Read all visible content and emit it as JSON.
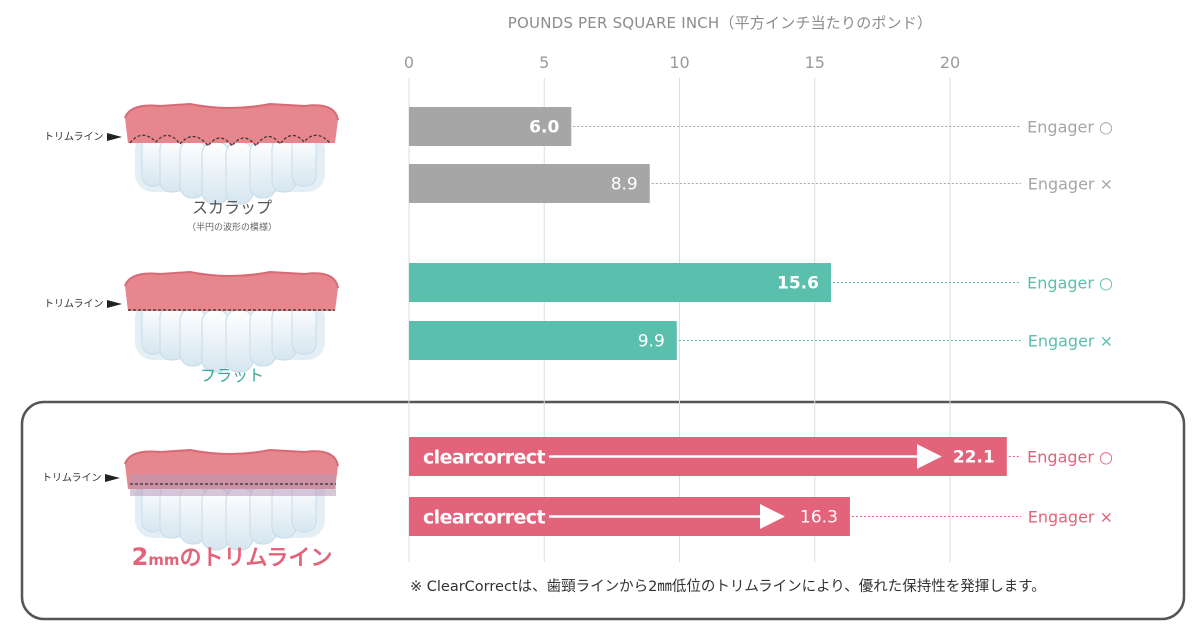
{
  "chart_data": {
    "type": "bar",
    "orientation": "horizontal",
    "title": "POUNDS PER SQUARE INCH（平方インチ当たりのポンド）",
    "xlim": [
      0,
      22.5
    ],
    "ticks": [
      "0",
      "5",
      "10",
      "15",
      "20"
    ],
    "grid": true,
    "trim_label": "トリムライン",
    "groups": [
      {
        "name": "スカラップ",
        "subtitle": "（半円の波形の模様）",
        "color": "#a6a6a6",
        "bars": [
          {
            "value": 6.0,
            "label": "6.0",
            "engager": "Engager ○",
            "bold": true
          },
          {
            "value": 8.9,
            "label": "8.9",
            "engager": "Engager ×",
            "bold": false
          }
        ]
      },
      {
        "name": "フラット",
        "subtitle": "",
        "color": "#5bbfad",
        "bars": [
          {
            "value": 15.6,
            "label": "15.6",
            "engager": "Engager ○",
            "bold": true
          },
          {
            "value": 9.9,
            "label": "9.9",
            "engager": "Engager ×",
            "bold": false
          }
        ]
      },
      {
        "name_num": "2",
        "name_unit": "mm",
        "name_rest": "のトリムライン",
        "subtitle": "",
        "color": "#e2637a",
        "brand": "clearcorrect",
        "bars": [
          {
            "value": 22.1,
            "label": "22.1",
            "engager": "Engager ○",
            "bold": true
          },
          {
            "value": 16.3,
            "label": "16.3",
            "engager": "Engager ×",
            "bold": false
          }
        ]
      }
    ],
    "footnote": "※ ClearCorrectは、歯頸ラインから2㎜低位のトリムラインにより、優れた保持性を発揮します。"
  },
  "colors": {
    "gum": "#e7868d",
    "gum_dark": "#d66b75",
    "tooth": "#f4f8fb",
    "tooth_edge": "#c9dbe8",
    "tick": "#9a9a9a",
    "axis_title": "#8c8c8c",
    "grid": "#dddddd",
    "highlight_border": "#555555"
  }
}
